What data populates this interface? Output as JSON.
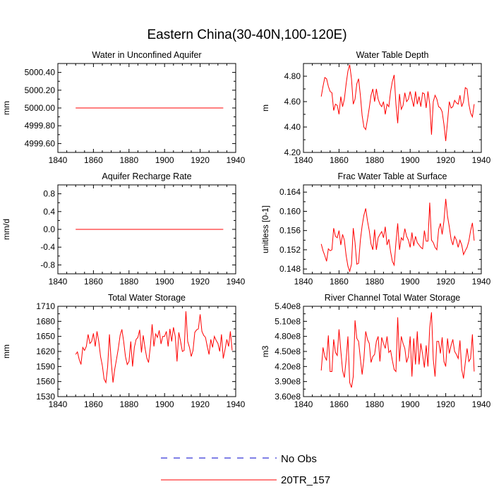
{
  "figure_title": "Eastern China(30-40N,100-120E)",
  "colors": {
    "series": "#ff0000",
    "no_obs": "#0000cc",
    "axis": "#000000"
  },
  "legend": {
    "entries": [
      {
        "label": "No Obs",
        "style": "dashed",
        "color": "#0000cc"
      },
      {
        "label": "20TR_157",
        "style": "solid",
        "color": "#ff0000"
      }
    ]
  },
  "chart_data": [
    {
      "type": "line",
      "title": "Water in Unconfined Aquifer",
      "ylabel": "mm",
      "xlim": [
        1840,
        1940
      ],
      "xticks": [
        1840,
        1860,
        1880,
        1900,
        1920,
        1940
      ],
      "ylim": [
        4999.5,
        5000.5
      ],
      "yticks": [
        4999.6,
        4999.8,
        5000.0,
        5000.2,
        5000.4
      ],
      "ytick_labels": [
        "4999.60",
        "4999.80",
        "5000.00",
        "5000.20",
        "5000.40"
      ],
      "x_start": 1850,
      "series": [
        {
          "name": "20TR_157",
          "values": [
            5000,
            5000,
            5000,
            5000,
            5000,
            5000,
            5000,
            5000,
            5000,
            5000,
            5000,
            5000,
            5000,
            5000,
            5000,
            5000,
            5000,
            5000,
            5000,
            5000,
            5000,
            5000,
            5000,
            5000,
            5000,
            5000,
            5000,
            5000,
            5000,
            5000,
            5000,
            5000,
            5000,
            5000,
            5000,
            5000,
            5000,
            5000,
            5000,
            5000,
            5000,
            5000,
            5000,
            5000,
            5000,
            5000,
            5000,
            5000,
            5000,
            5000,
            5000,
            5000,
            5000,
            5000,
            5000,
            5000,
            5000,
            5000,
            5000,
            5000,
            5000,
            5000,
            5000,
            5000,
            5000,
            5000,
            5000,
            5000,
            5000,
            5000,
            5000,
            5000,
            5000,
            5000,
            5000,
            5000,
            5000,
            5000,
            5000,
            5000,
            5000,
            5000,
            5000,
            5000
          ]
        }
      ]
    },
    {
      "type": "line",
      "title": "Water Table Depth",
      "ylabel": "m",
      "xlim": [
        1840,
        1940
      ],
      "xticks": [
        1840,
        1860,
        1880,
        1900,
        1920,
        1940
      ],
      "ylim": [
        4.2,
        4.9
      ],
      "yticks": [
        4.2,
        4.4,
        4.6,
        4.8
      ],
      "ytick_labels": [
        "4.20",
        "4.40",
        "4.60",
        "4.80"
      ],
      "x_start": 1850,
      "series": [
        {
          "name": "20TR_157",
          "values": [
            4.64,
            4.72,
            4.79,
            4.78,
            4.72,
            4.68,
            4.67,
            4.53,
            4.58,
            4.57,
            4.5,
            4.64,
            4.56,
            4.62,
            4.74,
            4.84,
            4.89,
            4.78,
            4.58,
            4.62,
            4.74,
            4.78,
            4.65,
            4.49,
            4.4,
            4.38,
            4.46,
            4.55,
            4.65,
            4.7,
            4.6,
            4.7,
            4.62,
            4.58,
            4.56,
            4.6,
            4.5,
            4.58,
            4.56,
            4.68,
            4.76,
            4.81,
            4.58,
            4.43,
            4.66,
            4.54,
            4.57,
            4.67,
            4.6,
            4.62,
            4.68,
            4.62,
            4.56,
            4.68,
            4.58,
            4.64,
            4.56,
            4.67,
            4.66,
            4.55,
            4.68,
            4.58,
            4.34,
            4.6,
            4.65,
            4.62,
            4.56,
            4.55,
            4.52,
            4.42,
            4.29,
            4.44,
            4.6,
            4.55,
            4.56,
            4.61,
            4.59,
            4.58,
            4.65,
            4.56,
            4.6,
            4.71,
            4.7,
            4.58,
            4.51,
            4.48,
            4.58
          ]
        }
      ]
    },
    {
      "type": "line",
      "title": "Aquifer Recharge Rate",
      "ylabel": "mm/d",
      "xlim": [
        1840,
        1940
      ],
      "xticks": [
        1840,
        1860,
        1880,
        1900,
        1920,
        1940
      ],
      "ylim": [
        -1.0,
        1.0
      ],
      "yticks": [
        -0.8,
        -0.4,
        0.0,
        0.4,
        0.8
      ],
      "ytick_labels": [
        "-0.8",
        "-0.4",
        "0.0",
        "0.4",
        "0.8"
      ],
      "x_start": 1850,
      "series": [
        {
          "name": "20TR_157",
          "values": [
            0,
            0,
            0,
            0,
            0,
            0,
            0,
            0,
            0,
            0,
            0,
            0,
            0,
            0,
            0,
            0,
            0,
            0,
            0,
            0,
            0,
            0,
            0,
            0,
            0,
            0,
            0,
            0,
            0,
            0,
            0,
            0,
            0,
            0,
            0,
            0,
            0,
            0,
            0,
            0,
            0,
            0,
            0,
            0,
            0,
            0,
            0,
            0,
            0,
            0,
            0,
            0,
            0,
            0,
            0,
            0,
            0,
            0,
            0,
            0,
            0,
            0,
            0,
            0,
            0,
            0,
            0,
            0,
            0,
            0,
            0,
            0,
            0,
            0,
            0,
            0,
            0,
            0,
            0,
            0,
            0,
            0,
            0,
            0
          ]
        }
      ]
    },
    {
      "type": "line",
      "title": "Frac Water Table at Surface",
      "ylabel": "unitless [0-1]",
      "xlim": [
        1840,
        1940
      ],
      "xticks": [
        1840,
        1860,
        1880,
        1900,
        1920,
        1940
      ],
      "ylim": [
        0.147,
        0.1655
      ],
      "yticks": [
        0.148,
        0.152,
        0.156,
        0.16,
        0.164
      ],
      "ytick_labels": [
        "0.148",
        "0.152",
        "0.156",
        "0.160",
        "0.164"
      ],
      "x_start": 1850,
      "series": [
        {
          "name": "20TR_157",
          "values": [
            0.1532,
            0.1518,
            0.1508,
            0.1496,
            0.1522,
            0.1518,
            0.152,
            0.1565,
            0.1548,
            0.1545,
            0.156,
            0.153,
            0.1552,
            0.154,
            0.1508,
            0.1486,
            0.1475,
            0.149,
            0.1565,
            0.1535,
            0.149,
            0.1492,
            0.154,
            0.157,
            0.1592,
            0.1606,
            0.158,
            0.156,
            0.1532,
            0.152,
            0.1562,
            0.152,
            0.1545,
            0.1552,
            0.1558,
            0.1545,
            0.1568,
            0.153,
            0.1542,
            0.1516,
            0.1496,
            0.1488,
            0.1535,
            0.1575,
            0.152,
            0.1545,
            0.154,
            0.1564,
            0.1548,
            0.154,
            0.1525,
            0.1556,
            0.1528,
            0.1548,
            0.1535,
            0.153,
            0.1525,
            0.1522,
            0.156,
            0.1538,
            0.1538,
            0.1618,
            0.154,
            0.1535,
            0.1525,
            0.152,
            0.1562,
            0.1575,
            0.1552,
            0.158,
            0.1626,
            0.159,
            0.1568,
            0.1542,
            0.153,
            0.1548,
            0.154,
            0.1525,
            0.154,
            0.153,
            0.151,
            0.1518,
            0.1525,
            0.1538,
            0.156,
            0.1576,
            0.1539
          ]
        }
      ]
    },
    {
      "type": "line",
      "title": "Total Water Storage",
      "ylabel": "mm",
      "xlim": [
        1840,
        1940
      ],
      "xticks": [
        1840,
        1860,
        1880,
        1900,
        1920,
        1940
      ],
      "ylim": [
        1530,
        1710
      ],
      "yticks": [
        1530,
        1560,
        1590,
        1620,
        1650,
        1680,
        1710
      ],
      "ytick_labels": [
        "1530",
        "1560",
        "1590",
        "1620",
        "1650",
        "1680",
        "1710"
      ],
      "x_start": 1850,
      "series": [
        {
          "name": "20TR_157",
          "values": [
            1614,
            1619,
            1604,
            1594,
            1628,
            1622,
            1630,
            1654,
            1636,
            1640,
            1656,
            1630,
            1660,
            1640,
            1610,
            1592,
            1565,
            1558,
            1590,
            1654,
            1600,
            1558,
            1585,
            1605,
            1626,
            1652,
            1664,
            1640,
            1610,
            1594,
            1600,
            1640,
            1590,
            1628,
            1644,
            1648,
            1663,
            1618,
            1652,
            1627,
            1607,
            1598,
            1630,
            1674,
            1630,
            1655,
            1648,
            1662,
            1635,
            1650,
            1650,
            1660,
            1630,
            1665,
            1640,
            1668,
            1650,
            1600,
            1658,
            1640,
            1620,
            1622,
            1700,
            1640,
            1628,
            1610,
            1622,
            1658,
            1663,
            1665,
            1694,
            1660,
            1652,
            1648,
            1630,
            1614,
            1644,
            1628,
            1650,
            1642,
            1636,
            1620,
            1654,
            1606,
            1624,
            1644,
            1630,
            1660,
            1622
          ]
        }
      ]
    },
    {
      "type": "line",
      "title": "River Channel Total Water Storage",
      "ylabel": "m3",
      "xlim": [
        1840,
        1940
      ],
      "xticks": [
        1840,
        1860,
        1880,
        1900,
        1920,
        1940
      ],
      "ylim": [
        360000000,
        540000000
      ],
      "yticks": [
        360000000,
        390000000,
        420000000,
        450000000,
        480000000,
        510000000,
        540000000
      ],
      "ytick_labels": [
        "3.60e8",
        "3.90e8",
        "4.20e8",
        "4.50e8",
        "4.80e8",
        "5.10e8",
        "5.40e8"
      ],
      "x_start": 1850,
      "series": [
        {
          "name": "20TR_157",
          "values": [
            412000000,
            458000000,
            440000000,
            432000000,
            482000000,
            410000000,
            410000000,
            474000000,
            448000000,
            442000000,
            494000000,
            452000000,
            412000000,
            398000000,
            434000000,
            480000000,
            388000000,
            378000000,
            400000000,
            512000000,
            476000000,
            470000000,
            436000000,
            404000000,
            436000000,
            490000000,
            474000000,
            466000000,
            428000000,
            440000000,
            444000000,
            470000000,
            480000000,
            430000000,
            478000000,
            466000000,
            456000000,
            480000000,
            448000000,
            452000000,
            432000000,
            414000000,
            410000000,
            518000000,
            430000000,
            480000000,
            466000000,
            456000000,
            428000000,
            440000000,
            480000000,
            400000000,
            476000000,
            424000000,
            490000000,
            424000000,
            466000000,
            444000000,
            418000000,
            462000000,
            420000000,
            498000000,
            528000000,
            434000000,
            400000000,
            470000000,
            470000000,
            446000000,
            478000000,
            430000000,
            420000000,
            476000000,
            446000000,
            462000000,
            474000000,
            450000000,
            444000000,
            436000000,
            472000000,
            414000000,
            396000000,
            428000000,
            456000000,
            430000000,
            436000000,
            484000000,
            410000000
          ]
        }
      ]
    }
  ]
}
